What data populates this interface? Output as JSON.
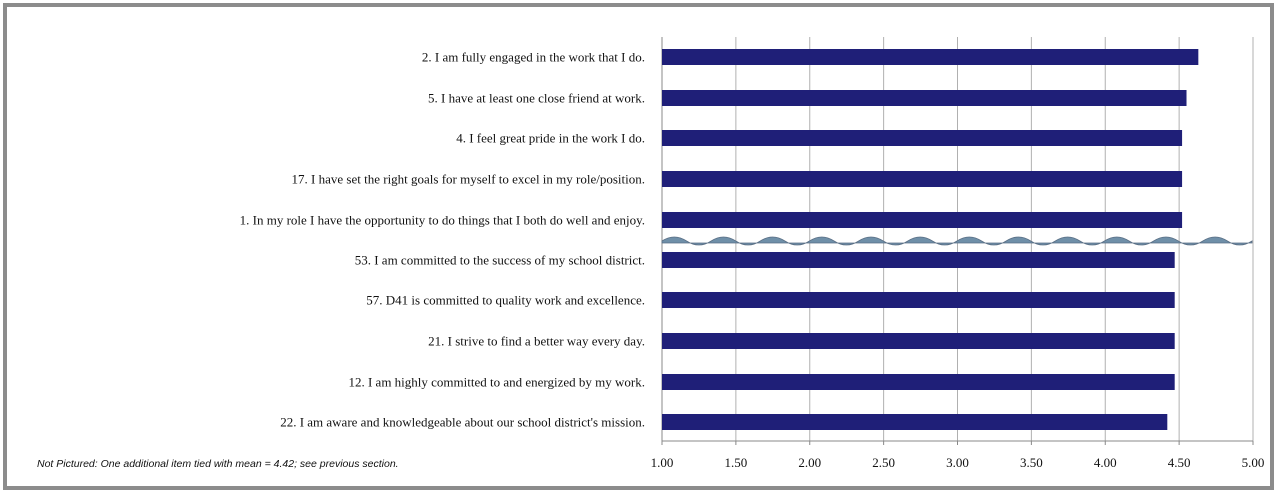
{
  "chart_data": {
    "type": "bar",
    "orientation": "horizontal",
    "categories": [
      "2. I am fully engaged in the work that I do.",
      "5. I have at least one close friend at work.",
      "4. I feel great pride in the work I do.",
      "17. I have set the right goals for myself to excel in my role/position.",
      "1. In my role I have the opportunity to do things that I both do well and enjoy.",
      "53. I am committed to the success of my school district.",
      "57. D41 is committed to quality work and excellence.",
      "21. I strive to find a better way every day.",
      "12. I am highly committed to and energized by my work.",
      "22. I am aware and knowledgeable about our school district's mission."
    ],
    "values": [
      4.63,
      4.55,
      4.52,
      4.52,
      4.52,
      4.47,
      4.47,
      4.47,
      4.47,
      4.42
    ],
    "xlim": [
      1.0,
      5.0
    ],
    "x_ticks": [
      "1.00",
      "1.50",
      "2.00",
      "2.50",
      "3.00",
      "3.50",
      "4.00",
      "4.50",
      "5.00"
    ],
    "x_tick_values": [
      1.0,
      1.5,
      2.0,
      2.5,
      3.0,
      3.5,
      4.0,
      4.5,
      5.0
    ],
    "grid": "vertical",
    "bar_color": "#1f1f78",
    "break_after_index": 4,
    "break_color": "#6f8fa8",
    "title": "",
    "xlabel": "",
    "ylabel": ""
  },
  "footnote": "Not Pictured: One additional item tied with mean = 4.42; see previous section."
}
